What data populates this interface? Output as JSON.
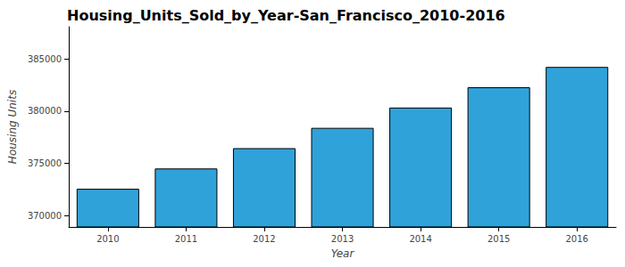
{
  "chart_data": {
    "type": "bar",
    "title": "Housing_Units_Sold_by_Year-San_Francisco_2010-2016",
    "x_label": "Year",
    "y_label": "Housing Units",
    "categories": [
      "2010",
      "2011",
      "2012",
      "2013",
      "2014",
      "2015",
      "2016"
    ],
    "values": [
      372560,
      374507,
      376454,
      378401,
      380348,
      382295,
      384242
    ],
    "color": "#30a2da",
    "ylim": [
      368900,
      388100
    ],
    "yticks": [
      370000,
      375000,
      380000,
      385000
    ],
    "grid": false
  }
}
